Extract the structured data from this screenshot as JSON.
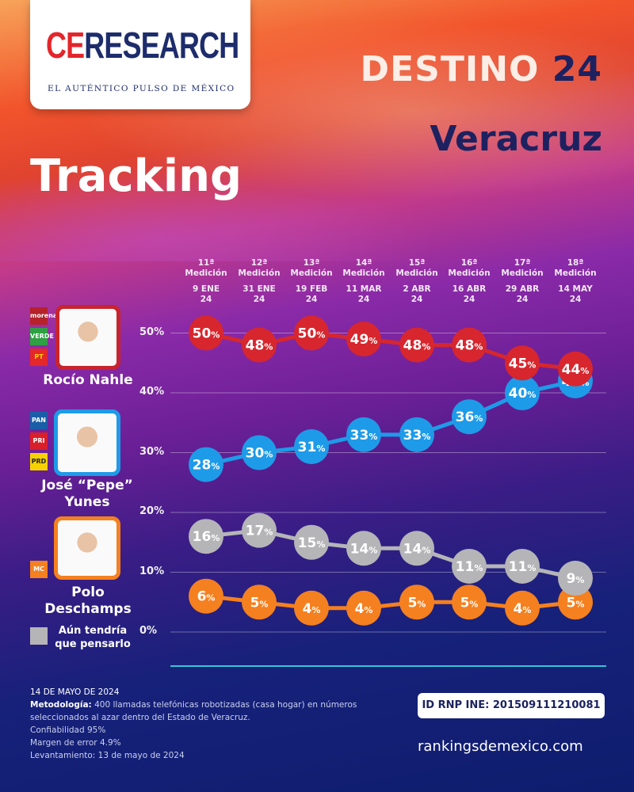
{
  "header": {
    "logo_brand_ce": "CE",
    "logo_brand_rest": "RESEARCH",
    "logo_tagline": "EL AUTÉNTICO PULSO DE MÉXICO",
    "destino": "DESTINO",
    "destino_num": "24",
    "state": "Veracruz",
    "section": "Tracking"
  },
  "candidates": [
    {
      "name": "Rocío Nahle",
      "parties": [
        "morena",
        "VERDE",
        "PT"
      ],
      "color": "#d7262e"
    },
    {
      "name": "José “Pepe” Yunes",
      "parties": [
        "PAN",
        "PRI",
        "PRD"
      ],
      "color": "#1e9be8"
    },
    {
      "name": "Polo Deschamps",
      "parties": [
        "MC"
      ],
      "color": "#f5801f"
    },
    {
      "name": "Aún tendría que pensarlo",
      "color": "#b5b5b8"
    }
  ],
  "chart_data": {
    "type": "line",
    "categories": [
      {
        "medicion": "11ª",
        "label": "Medición",
        "date": "9 ENE",
        "year": "24"
      },
      {
        "medicion": "12ª",
        "label": "Medición",
        "date": "31 ENE",
        "year": "24"
      },
      {
        "medicion": "13ª",
        "label": "Medición",
        "date": "19 FEB",
        "year": "24"
      },
      {
        "medicion": "14ª",
        "label": "Medición",
        "date": "11 MAR",
        "year": "24"
      },
      {
        "medicion": "15ª",
        "label": "Medición",
        "date": "2 ABR",
        "year": "24"
      },
      {
        "medicion": "16ª",
        "label": "Medición",
        "date": "16 ABR",
        "year": "24"
      },
      {
        "medicion": "17ª",
        "label": "Medición",
        "date": "29 ABR",
        "year": "24"
      },
      {
        "medicion": "18ª",
        "label": "Medición",
        "date": "14 MAY",
        "year": "24"
      }
    ],
    "yticks": [
      "0%",
      "10%",
      "20%",
      "30%",
      "40%",
      "50%"
    ],
    "ylim": [
      0,
      50
    ],
    "grid": true,
    "series": [
      {
        "name": "Rocío Nahle",
        "color": "#d7262e",
        "values": [
          50,
          48,
          50,
          49,
          48,
          48,
          45,
          44
        ]
      },
      {
        "name": "José “Pepe” Yunes",
        "color": "#1e9be8",
        "values": [
          28,
          30,
          31,
          33,
          33,
          36,
          40,
          42
        ]
      },
      {
        "name": "Aún tendría que pensarlo",
        "color": "#b5b5b8",
        "values": [
          16,
          17,
          15,
          14,
          14,
          11,
          11,
          9
        ]
      },
      {
        "name": "Polo Deschamps",
        "color": "#f5801f",
        "values": [
          6,
          5,
          4,
          4,
          5,
          5,
          4,
          5
        ]
      }
    ]
  },
  "footer": {
    "date": "14 DE MAYO DE 2024",
    "method_label": "Metodología:",
    "method": "400 llamadas telefónicas robotizadas (casa hogar) en números seleccionados al azar dentro del Estado de Veracruz.",
    "confidence": "Confiabilidad 95%",
    "margin": "Margen de error 4.9%",
    "fieldwork": "Levantamiento: 13 de mayo de 2024",
    "rnp": "ID RNP INE:  201509111210081",
    "site": "rankingsdemexico.com"
  }
}
